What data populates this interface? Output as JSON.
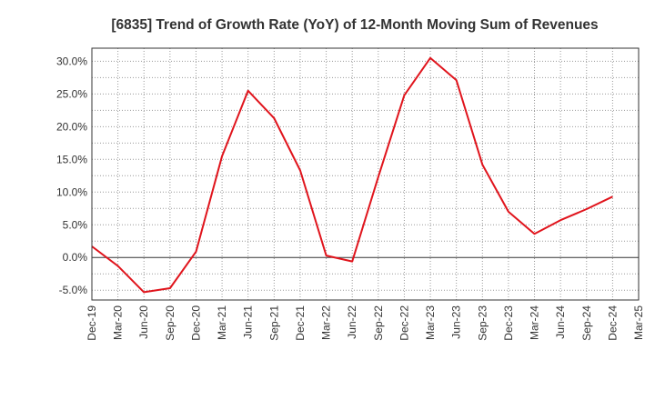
{
  "chart_data": {
    "type": "line",
    "title": "[6835]  Trend of Growth Rate (YoY) of 12-Month Moving Sum of Revenues",
    "xlabel": "",
    "ylabel": "",
    "x": [
      "Dec-19",
      "Mar-20",
      "Jun-20",
      "Sep-20",
      "Dec-20",
      "Mar-21",
      "Jun-21",
      "Sep-21",
      "Dec-21",
      "Mar-22",
      "Jun-22",
      "Sep-22",
      "Dec-22",
      "Mar-23",
      "Jun-23",
      "Sep-23",
      "Dec-23",
      "Mar-24",
      "Jun-24",
      "Sep-24",
      "Dec-24",
      "Mar-25"
    ],
    "series": [
      {
        "name": "",
        "color": "#e0141c",
        "values": [
          1.7,
          -1.3,
          -5.3,
          -4.7,
          0.9,
          15.5,
          25.5,
          21.3,
          13.3,
          0.3,
          -0.6,
          12.3,
          24.8,
          30.5,
          27.1,
          14.2,
          7.0,
          3.6,
          5.7,
          7.4,
          9.3,
          null
        ]
      }
    ],
    "y_ticks": [
      "30.0%",
      "25.0%",
      "20.0%",
      "15.0%",
      "10.0%",
      "5.0%",
      "0.0%",
      "-5.0%"
    ],
    "y_tick_values": [
      30,
      25,
      20,
      15,
      10,
      5,
      0,
      -5
    ],
    "ylim": [
      -6.5,
      32
    ],
    "grid": true,
    "grid_style": "dotted",
    "zero_line": true,
    "legend": "none",
    "colors": {
      "grid": "#999999",
      "axis": "#333333",
      "text": "#333333"
    }
  }
}
